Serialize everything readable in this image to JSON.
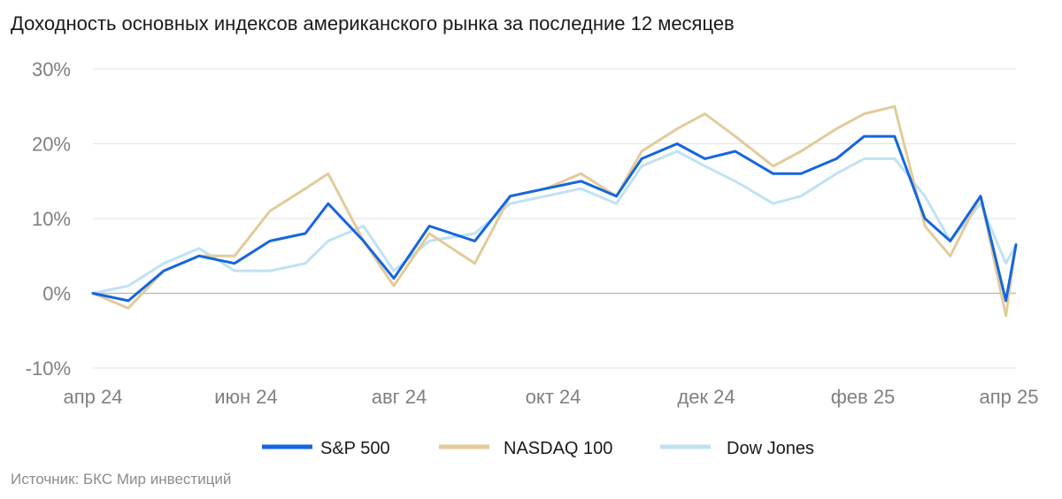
{
  "title": "Доходность основных индексов американского рынка за последние 12 месяцев",
  "source": "Источник: БКС Мир инвестиций",
  "chart_data": {
    "type": "line",
    "title": "Доходность основных индексов американского рынка за последние 12 месяцев",
    "xlabel": "",
    "ylabel": "",
    "x_tick_labels": [
      "апр 24",
      "июн 24",
      "авг 24",
      "окт 24",
      "дек 24",
      "фев 25",
      "апр 25"
    ],
    "y_tick_labels": [
      "30%",
      "20%",
      "10%",
      "0%",
      "-10%"
    ],
    "y_ticks": [
      30,
      20,
      10,
      0,
      -10
    ],
    "ylim": [
      -10,
      30
    ],
    "xlim": [
      "2024-04-08",
      "2025-04-08"
    ],
    "grid": "horizontal",
    "legend": "bottom",
    "x": [
      "2024-04-08",
      "2024-04-22",
      "2024-05-06",
      "2024-05-20",
      "2024-06-03",
      "2024-06-17",
      "2024-07-01",
      "2024-07-10",
      "2024-07-24",
      "2024-08-05",
      "2024-08-19",
      "2024-09-06",
      "2024-09-20",
      "2024-10-04",
      "2024-10-18",
      "2024-11-01",
      "2024-11-11",
      "2024-11-25",
      "2024-12-06",
      "2024-12-18",
      "2025-01-02",
      "2025-01-13",
      "2025-01-27",
      "2025-02-07",
      "2025-02-19",
      "2025-03-03",
      "2025-03-13",
      "2025-03-25",
      "2025-04-04",
      "2025-04-08"
    ],
    "series": [
      {
        "name": "S&P 500",
        "color": "#1565e0",
        "values": [
          0,
          -1,
          3,
          5,
          4,
          7,
          8,
          12,
          7,
          2,
          9,
          7,
          13,
          14,
          15,
          13,
          18,
          20,
          18,
          19,
          16,
          16,
          18,
          21,
          21,
          10,
          7,
          13,
          -1,
          6.5
        ]
      },
      {
        "name": "NASDAQ 100",
        "color": "#e2cb9a",
        "values": [
          0,
          -2,
          3,
          5,
          5,
          11,
          14,
          16,
          7,
          1,
          8,
          4,
          13,
          14,
          16,
          13,
          19,
          22,
          24,
          21,
          17,
          19,
          22,
          24,
          25,
          9,
          5,
          13,
          -3,
          6.5
        ]
      },
      {
        "name": "Dow Jones",
        "color": "#bfe2f3",
        "values": [
          0,
          1,
          4,
          6,
          3,
          3,
          4,
          7,
          9,
          3,
          7,
          8,
          12,
          13,
          14,
          12,
          17,
          19,
          17,
          15,
          12,
          13,
          16,
          18,
          18,
          13,
          7,
          12,
          4,
          6.5
        ]
      }
    ]
  }
}
